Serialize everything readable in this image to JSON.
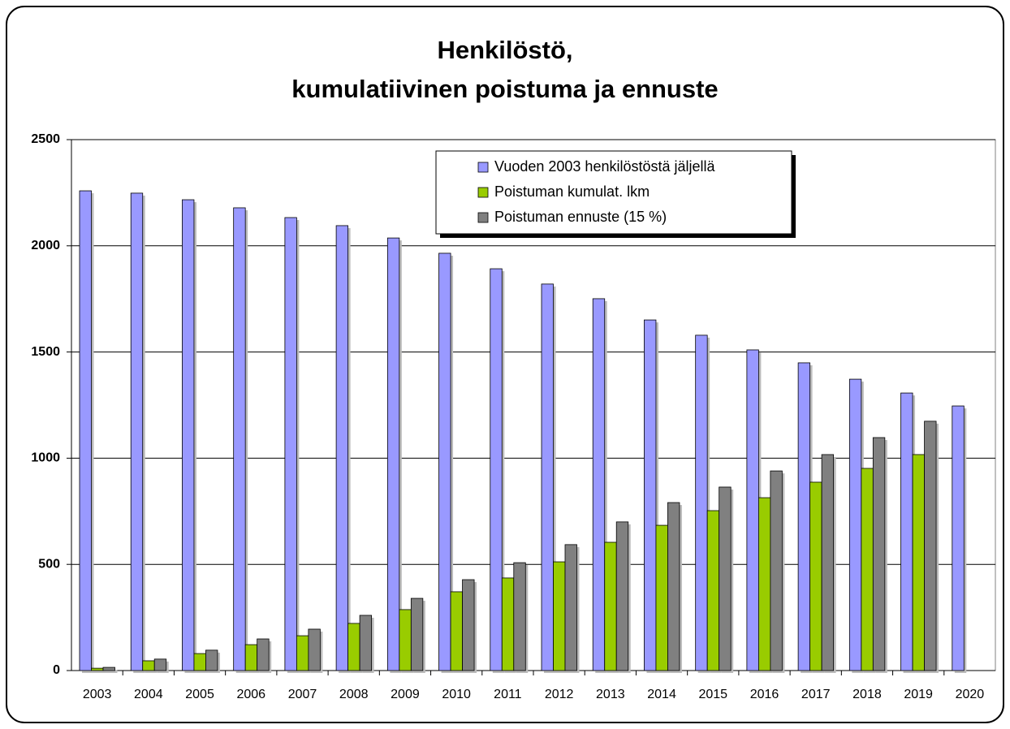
{
  "chart_data": {
    "type": "bar",
    "title": [
      "Henkilöstö,",
      "kumulatiivinen poistuma ja ennuste"
    ],
    "categories": [
      "2003",
      "2004",
      "2005",
      "2006",
      "2007",
      "2008",
      "2009",
      "2010",
      "2011",
      "2012",
      "2013",
      "2014",
      "2015",
      "2016",
      "2017",
      "2018",
      "2019",
      "2020"
    ],
    "series": [
      {
        "name": "Vuoden 2003 henkilöstöstä jäljellä",
        "color": "#9999ff",
        "values": [
          2259,
          2248,
          2217,
          2179,
          2133,
          2095,
          2037,
          1965,
          1892,
          1820,
          1751,
          1651,
          1579,
          1510,
          1449,
          1372,
          1307,
          1246
        ]
      },
      {
        "name": "Poistuman kumulat. lkm",
        "color": "#99cc00",
        "values": [
          11,
          46,
          80,
          122,
          164,
          222,
          287,
          371,
          436,
          512,
          604,
          684,
          753,
          814,
          887,
          952,
          1017,
          null
        ]
      },
      {
        "name": "Poistuman ennuste (15 %)",
        "color": "#808080",
        "values": [
          15,
          54,
          96,
          149,
          195,
          260,
          340,
          428,
          508,
          593,
          700,
          791,
          864,
          940,
          1017,
          1097,
          1174,
          null
        ]
      }
    ],
    "ylim": [
      0,
      2500
    ],
    "yticks": [
      0,
      500,
      1000,
      1500,
      2000,
      2500
    ],
    "grid": true,
    "legend": "top-right"
  }
}
